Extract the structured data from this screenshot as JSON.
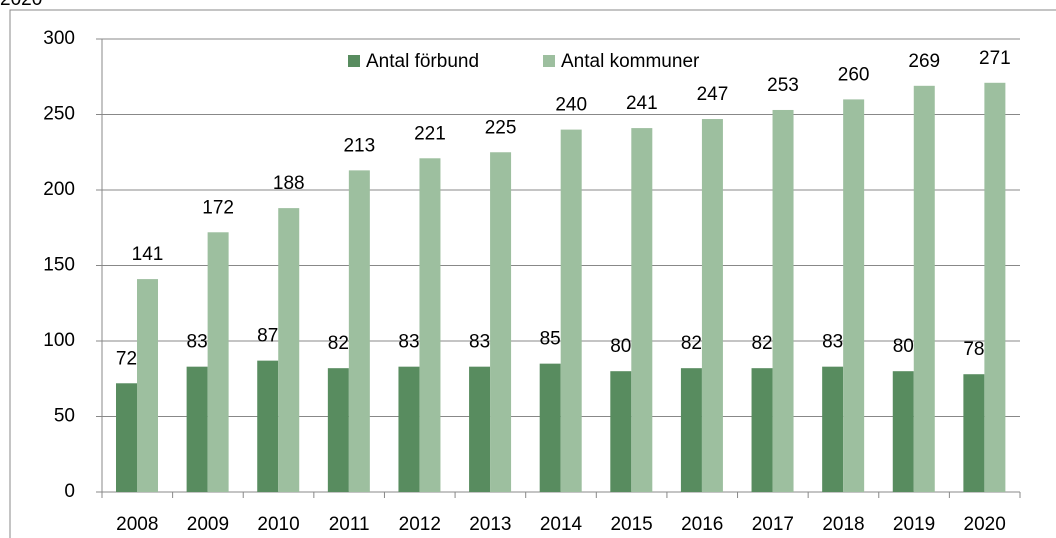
{
  "chart_data": {
    "type": "bar",
    "title": "2020",
    "categories": [
      "2008",
      "2009",
      "2010",
      "2011",
      "2012",
      "2013",
      "2014",
      "2015",
      "2016",
      "2017",
      "2018",
      "2019",
      "2020"
    ],
    "series": [
      {
        "name": "Antal förbund",
        "color": "#588c5f",
        "values": [
          72,
          83,
          87,
          82,
          83,
          83,
          85,
          80,
          82,
          82,
          83,
          80,
          78
        ]
      },
      {
        "name": "Antal kommuner",
        "color": "#9dbf9f",
        "values": [
          141,
          172,
          188,
          213,
          221,
          225,
          240,
          241,
          247,
          253,
          260,
          269,
          271
        ]
      }
    ],
    "ylim": [
      0,
      300
    ],
    "yticks": [
      0,
      50,
      100,
      150,
      200,
      250,
      300
    ],
    "grid": true,
    "legend": "top"
  }
}
